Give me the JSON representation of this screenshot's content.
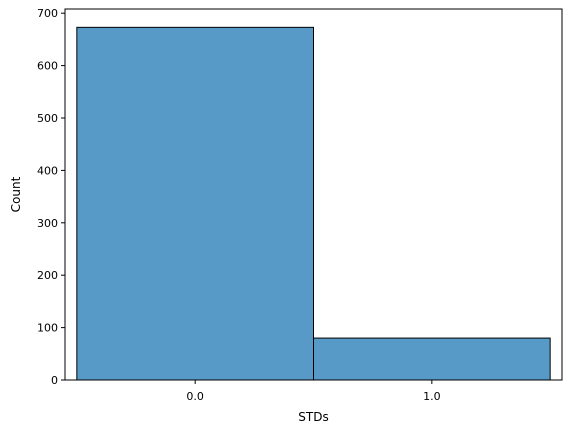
{
  "chart_data": {
    "type": "bar",
    "categories": [
      "0.0",
      "1.0"
    ],
    "values": [
      673,
      80
    ],
    "xlabel": "STDs",
    "ylabel": "Count",
    "ylim": [
      0,
      708
    ],
    "yticks": [
      0,
      100,
      200,
      300,
      400,
      500,
      600,
      700
    ],
    "xlim": [
      -0.55,
      1.55
    ],
    "bin_edges": [
      -0.5,
      0.5,
      1.5
    ],
    "x_tick_positions": [
      0,
      1
    ],
    "grid": false,
    "colors": {
      "bar_fill": "#5799c7",
      "bar_edge": "#000000",
      "axis": "#000000"
    }
  }
}
